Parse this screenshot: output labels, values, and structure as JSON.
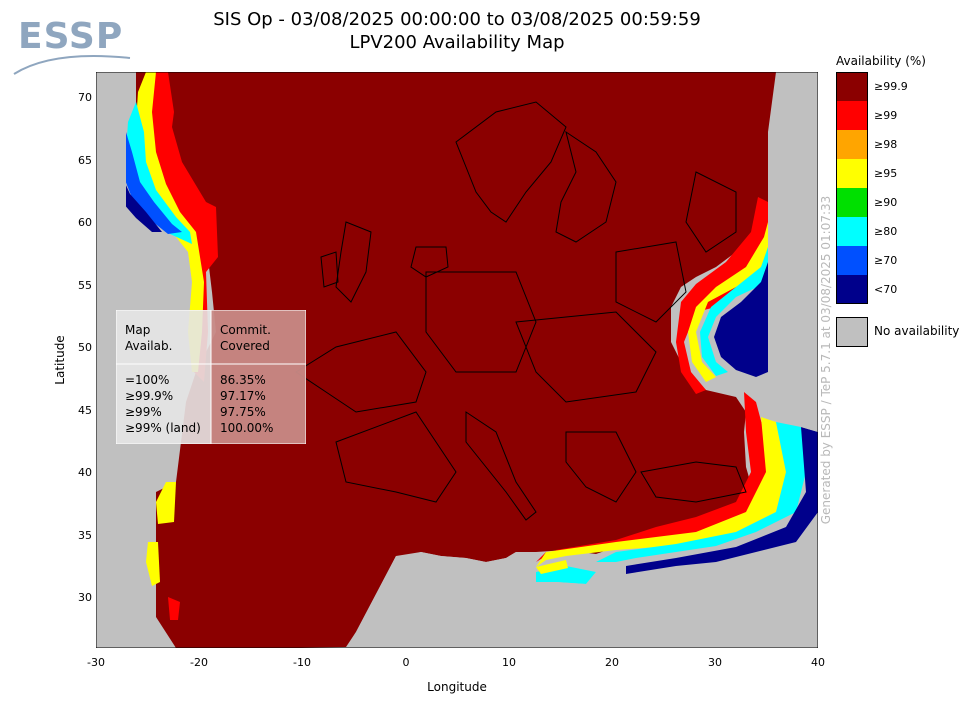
{
  "logo": {
    "text": "ESSP"
  },
  "title": {
    "line1": "SIS Op - 03/08/2025 00:00:00 to 03/08/2025 00:59:59",
    "line2": "LPV200 Availability Map"
  },
  "axes": {
    "xlabel": "Longitude",
    "ylabel": "Latitude",
    "xticks": [
      "-30",
      "-20",
      "-10",
      "0",
      "10",
      "20",
      "30",
      "40"
    ],
    "yticks": [
      "70",
      "65",
      "60",
      "55",
      "50",
      "45",
      "40",
      "35",
      "30"
    ],
    "xlim": [
      -30,
      40
    ],
    "ylim": [
      26,
      72
    ]
  },
  "legend": {
    "title": "Availability (%)",
    "items": [
      {
        "label": "≥99.9",
        "color": "#8b0000"
      },
      {
        "label": "≥99",
        "color": "#ff0000"
      },
      {
        "label": "≥98",
        "color": "#ffa500"
      },
      {
        "label": "≥95",
        "color": "#ffff00"
      },
      {
        "label": "≥90",
        "color": "#00e000"
      },
      {
        "label": "≥80",
        "color": "#00ffff"
      },
      {
        "label": "≥70",
        "color": "#0050ff"
      },
      {
        "label": "<70",
        "color": "#00008b"
      }
    ],
    "no_availability": {
      "label": "No availability",
      "color": "#c0c0c0"
    }
  },
  "stats": {
    "header": {
      "left": "Map\nAvailab.",
      "right": "Commit.\nCovered"
    },
    "rows": [
      {
        "left": "=100%",
        "right": "86.35%"
      },
      {
        "left": "≥99.9%",
        "right": "97.17%"
      },
      {
        "left": "≥99%",
        "right": "97.75%"
      },
      {
        "left": "≥99% (land)",
        "right": "100.00%"
      }
    ]
  },
  "footer": "Generated by ESSP / TeP 5.7.1 at 03/08/2025 01:07:33",
  "colors": {
    "no_data": "#c0c0c0",
    "top_class": "#8b0000",
    "coastline": "#000000"
  }
}
